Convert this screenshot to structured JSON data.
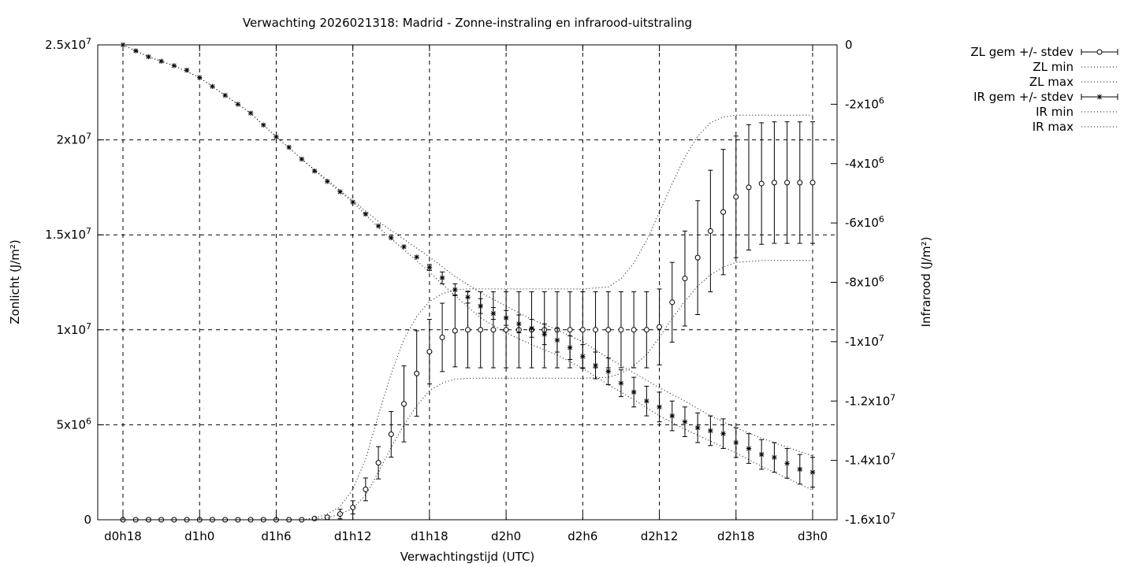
{
  "chart_data": {
    "type": "line",
    "title": "Verwachting 2026021318: Madrid - Zonne-instraling en infrarood-uitstraling",
    "xlabel": "Verwachtingstijd (UTC)",
    "ylabel_left": "Zonlicht (J/m²)",
    "ylabel_right": "Infrarood (J/m²)",
    "x_range_hours": [
      0,
      57
    ],
    "x_ticks": [
      {
        "h": 0,
        "label": "d0h18"
      },
      {
        "h": 6,
        "label": "d1h0"
      },
      {
        "h": 12,
        "label": "d1h6"
      },
      {
        "h": 18,
        "label": "d1h12"
      },
      {
        "h": 24,
        "label": "d1h18"
      },
      {
        "h": 30,
        "label": "d2h0"
      },
      {
        "h": 36,
        "label": "d2h6"
      },
      {
        "h": 42,
        "label": "d2h12"
      },
      {
        "h": 48,
        "label": "d2h18"
      },
      {
        "h": 54,
        "label": "d3h0"
      }
    ],
    "y_left_range": [
      0,
      25000000
    ],
    "y_left_ticks": [
      {
        "v": 0,
        "base": "0",
        "exp": ""
      },
      {
        "v": 5000000,
        "base": "5x10",
        "exp": "6"
      },
      {
        "v": 10000000,
        "base": "1x10",
        "exp": "7"
      },
      {
        "v": 15000000,
        "base": "1.5x10",
        "exp": "7"
      },
      {
        "v": 20000000,
        "base": "2x10",
        "exp": "7"
      },
      {
        "v": 25000000,
        "base": "2.5x10",
        "exp": "7"
      }
    ],
    "y_right_range": [
      -16000000,
      0
    ],
    "y_right_ticks": [
      {
        "v": 0,
        "base": "0",
        "exp": ""
      },
      {
        "v": -2000000,
        "base": "-2x10",
        "exp": "6"
      },
      {
        "v": -4000000,
        "base": "-4x10",
        "exp": "6"
      },
      {
        "v": -6000000,
        "base": "-6x10",
        "exp": "6"
      },
      {
        "v": -8000000,
        "base": "-8x10",
        "exp": "6"
      },
      {
        "v": -10000000,
        "base": "-1x10",
        "exp": "7"
      },
      {
        "v": -12000000,
        "base": "-1.2x10",
        "exp": "7"
      },
      {
        "v": -14000000,
        "base": "-1.4x10",
        "exp": "7"
      },
      {
        "v": -16000000,
        "base": "-1.6x10",
        "exp": "7"
      }
    ],
    "grid": true,
    "legend_position": "outside-top-right",
    "series": [
      {
        "name": "ZL gem +/- stdev",
        "axis": "left",
        "style": "errorbars-circle",
        "x": [
          0,
          1,
          2,
          3,
          4,
          5,
          6,
          7,
          8,
          9,
          10,
          11,
          12,
          13,
          14,
          15,
          16,
          17,
          18,
          19,
          20,
          21,
          22,
          23,
          24,
          25,
          26,
          27,
          28,
          29,
          30,
          31,
          32,
          33,
          34,
          35,
          36,
          37,
          38,
          39,
          40,
          41,
          42,
          43,
          44,
          45,
          46,
          47,
          48,
          49,
          50,
          51,
          52,
          53,
          54
        ],
        "mean": [
          0,
          0,
          0,
          0,
          0,
          0,
          0,
          0,
          0,
          0,
          0,
          0,
          0,
          0,
          0,
          60000,
          130000,
          300000,
          650000,
          1600000,
          3000000,
          4500000,
          6100000,
          7700000,
          8850000,
          9600000,
          9950000,
          10000000,
          10000000,
          10000000,
          10000000,
          10000000,
          10000000,
          10000000,
          10000000,
          10000000,
          10000000,
          10000000,
          10000000,
          10000000,
          10000000,
          10000000,
          10150000,
          11450000,
          12700000,
          13800000,
          15200000,
          16200000,
          17000000,
          17500000,
          17700000,
          17750000,
          17750000,
          17750000,
          17750000
        ],
        "stdev": [
          0,
          0,
          0,
          0,
          0,
          0,
          0,
          0,
          0,
          0,
          0,
          0,
          0,
          0,
          0,
          30000,
          80000,
          250000,
          350000,
          600000,
          850000,
          1200000,
          2000000,
          2250000,
          1700000,
          1800000,
          1900000,
          2000000,
          2000000,
          2000000,
          2000000,
          2000000,
          2000000,
          2000000,
          2000000,
          2000000,
          2000000,
          2000000,
          2000000,
          2000000,
          2000000,
          2000000,
          2000000,
          2100000,
          2500000,
          3000000,
          3200000,
          3300000,
          3200000,
          3300000,
          3200000,
          3200000,
          3200000,
          3200000,
          3200000
        ]
      },
      {
        "name": "ZL min",
        "axis": "left",
        "style": "dotted",
        "x": [
          0,
          14,
          15,
          16,
          17,
          18,
          19,
          20,
          21,
          22,
          23,
          24,
          25,
          26,
          27,
          28,
          30,
          32,
          34,
          36,
          38,
          39,
          40,
          41,
          42,
          43,
          44,
          45,
          46,
          47,
          48,
          50,
          52,
          54
        ],
        "values": [
          0,
          0,
          30000,
          100000,
          300000,
          600000,
          1300000,
          2500000,
          3800000,
          5000000,
          6000000,
          6800000,
          7200000,
          7400000,
          7450000,
          7450000,
          7450000,
          7450000,
          7450000,
          7450000,
          7500000,
          7700000,
          8100000,
          8700000,
          9600000,
          10600000,
          11500000,
          12300000,
          12900000,
          13300000,
          13550000,
          13650000,
          13650000,
          13650000
        ]
      },
      {
        "name": "ZL max",
        "axis": "left",
        "style": "dotted",
        "x": [
          0,
          14,
          15,
          16,
          17,
          18,
          19,
          20,
          21,
          22,
          23,
          24,
          25,
          26,
          27,
          28,
          30,
          32,
          34,
          36,
          38,
          39,
          40,
          41,
          42,
          43,
          44,
          45,
          46,
          47,
          48,
          50,
          52,
          54
        ],
        "values": [
          0,
          0,
          100000,
          300000,
          700000,
          1600000,
          3200000,
          5500000,
          7700000,
          9500000,
          10700000,
          11500000,
          11900000,
          12100000,
          12150000,
          12150000,
          12150000,
          12150000,
          12150000,
          12150000,
          12250000,
          12700000,
          13500000,
          14700000,
          16200000,
          17700000,
          19100000,
          20200000,
          20900000,
          21200000,
          21300000,
          21300000,
          21300000,
          21300000
        ]
      },
      {
        "name": "IR gem +/- stdev",
        "axis": "right",
        "style": "errorbars-star",
        "x": [
          0,
          1,
          2,
          3,
          4,
          5,
          6,
          7,
          8,
          9,
          10,
          11,
          12,
          13,
          14,
          15,
          16,
          17,
          18,
          19,
          20,
          21,
          22,
          23,
          24,
          25,
          26,
          27,
          28,
          29,
          30,
          31,
          32,
          33,
          34,
          35,
          36,
          37,
          38,
          39,
          40,
          41,
          42,
          43,
          44,
          45,
          46,
          47,
          48,
          49,
          50,
          51,
          52,
          53,
          54
        ],
        "mean": [
          0,
          -200000,
          -400000,
          -550000,
          -700000,
          -850000,
          -1100000,
          -1400000,
          -1700000,
          -2000000,
          -2300000,
          -2700000,
          -3100000,
          -3450000,
          -3850000,
          -4250000,
          -4600000,
          -4950000,
          -5300000,
          -5700000,
          -6100000,
          -6500000,
          -6800000,
          -7150000,
          -7500000,
          -7850000,
          -8250000,
          -8500000,
          -8800000,
          -9050000,
          -9200000,
          -9400000,
          -9550000,
          -9750000,
          -9950000,
          -10200000,
          -10500000,
          -10800000,
          -11000000,
          -11400000,
          -11700000,
          -12000000,
          -12200000,
          -12500000,
          -12700000,
          -12900000,
          -13000000,
          -13100000,
          -13400000,
          -13600000,
          -13800000,
          -13900000,
          -14100000,
          -14300000,
          -14400000
        ],
        "stdev": [
          0,
          0,
          0,
          0,
          0,
          0,
          0,
          0,
          0,
          0,
          0,
          0,
          0,
          0,
          0,
          0,
          0,
          0,
          0,
          0,
          0,
          0,
          0,
          0,
          100000,
          200000,
          200000,
          200000,
          250000,
          200000,
          250000,
          300000,
          300000,
          350000,
          400000,
          400000,
          400000,
          450000,
          450000,
          450000,
          500000,
          500000,
          500000,
          500000,
          500000,
          500000,
          500000,
          500000,
          500000,
          500000,
          500000,
          500000,
          500000,
          500000,
          500000
        ]
      },
      {
        "name": "IR min",
        "axis": "right",
        "style": "dotted",
        "x": [
          0,
          2,
          4,
          6,
          8,
          10,
          12,
          14,
          16,
          18,
          20,
          22,
          24,
          26,
          28,
          30,
          32,
          34,
          36,
          38,
          40,
          42,
          44,
          46,
          48,
          50,
          52,
          54
        ],
        "values": [
          0,
          -400000,
          -700000,
          -1100000,
          -1700000,
          -2300000,
          -3100000,
          -3850000,
          -4600000,
          -5300000,
          -6150000,
          -6900000,
          -7650000,
          -8450000,
          -9200000,
          -9700000,
          -10100000,
          -10450000,
          -10900000,
          -11450000,
          -11950000,
          -12500000,
          -12950000,
          -13350000,
          -13750000,
          -14200000,
          -14600000,
          -15000000
        ]
      },
      {
        "name": "IR max",
        "axis": "right",
        "style": "dotted",
        "x": [
          0,
          2,
          4,
          6,
          8,
          10,
          12,
          14,
          16,
          18,
          20,
          22,
          24,
          26,
          28,
          30,
          32,
          34,
          36,
          38,
          40,
          42,
          44,
          46,
          48,
          50,
          52,
          54
        ],
        "values": [
          0,
          -400000,
          -700000,
          -1100000,
          -1700000,
          -2300000,
          -3100000,
          -3850000,
          -4550000,
          -5250000,
          -5950000,
          -6550000,
          -7150000,
          -7800000,
          -8350000,
          -8800000,
          -9250000,
          -9600000,
          -10000000,
          -10550000,
          -11050000,
          -11550000,
          -12000000,
          -12500000,
          -12900000,
          -13250000,
          -13550000,
          -13850000
        ]
      }
    ]
  }
}
